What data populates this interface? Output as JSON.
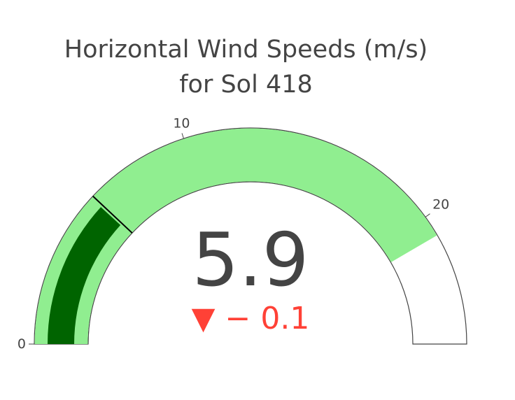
{
  "chart_data": {
    "type": "gauge",
    "title": [
      "Horizontal Wind Speeds (m/s)",
      "for Sol 418"
    ],
    "value": 5.9,
    "value_text": "5.9",
    "delta": -0.1,
    "delta_text": "− 0.1",
    "delta_symbol": "▼",
    "axis_range": [
      0,
      25
    ],
    "tick_values": [
      0,
      10,
      20
    ],
    "tick_labels": [
      "0",
      "10",
      "20"
    ],
    "steps": [
      {
        "range": [
          0,
          20.8
        ],
        "color": "#90ee90"
      }
    ],
    "threshold": 6,
    "bar_color": "#006400",
    "delta_color": "#ff4136",
    "text_color": "#444444"
  }
}
